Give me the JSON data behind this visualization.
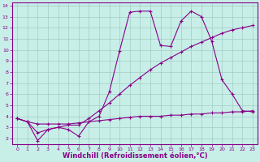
{
  "background_color": "#c8eee8",
  "grid_color": "#a0ccc4",
  "line_color": "#880088",
  "xlim": [
    -0.5,
    23.5
  ],
  "ylim": [
    1.5,
    14.3
  ],
  "xticks": [
    0,
    1,
    2,
    3,
    4,
    5,
    6,
    7,
    8,
    9,
    10,
    11,
    12,
    13,
    14,
    15,
    16,
    17,
    18,
    19,
    20,
    21,
    22,
    23
  ],
  "yticks": [
    2,
    3,
    4,
    5,
    6,
    7,
    8,
    9,
    10,
    11,
    12,
    13,
    14
  ],
  "xlabel": "Windchill (Refroidissement éolien,°C)",
  "line1_x": [
    0,
    1,
    2,
    3,
    4,
    5,
    6,
    7,
    8,
    9,
    10,
    11,
    12,
    13,
    14,
    15,
    16,
    17,
    18,
    19,
    20,
    21,
    22,
    23
  ],
  "line1_y": [
    3.8,
    3.5,
    1.8,
    2.8,
    3.0,
    2.8,
    2.2,
    3.5,
    4.0,
    6.2,
    9.9,
    13.4,
    13.5,
    13.5,
    10.4,
    10.3,
    12.6,
    13.5,
    13.0,
    10.8,
    7.3,
    6.0,
    4.5,
    4.4
  ],
  "line2_x": [
    0,
    1,
    2,
    3,
    4,
    5,
    6,
    7,
    8,
    9,
    10,
    11,
    12,
    13,
    14,
    15,
    16,
    17,
    18,
    19,
    20,
    21,
    22,
    23
  ],
  "line2_y": [
    3.8,
    3.5,
    2.5,
    2.8,
    3.0,
    3.2,
    3.2,
    3.8,
    4.5,
    5.2,
    6.0,
    6.8,
    7.5,
    8.2,
    8.8,
    9.3,
    9.8,
    10.3,
    10.7,
    11.1,
    11.5,
    11.8,
    12.0,
    12.2
  ],
  "line3_x": [
    0,
    1,
    2,
    3,
    4,
    5,
    6,
    7,
    8,
    9,
    10,
    11,
    12,
    13,
    14,
    15,
    16,
    17,
    18,
    19,
    20,
    21,
    22,
    23
  ],
  "line3_y": [
    3.8,
    3.5,
    3.3,
    3.3,
    3.3,
    3.3,
    3.4,
    3.5,
    3.6,
    3.7,
    3.8,
    3.9,
    4.0,
    4.0,
    4.0,
    4.1,
    4.1,
    4.2,
    4.2,
    4.3,
    4.3,
    4.4,
    4.4,
    4.5
  ],
  "marker_size": 2.5,
  "linewidth": 0.8,
  "tick_fontsize": 4.5,
  "xlabel_fontsize": 6.0
}
